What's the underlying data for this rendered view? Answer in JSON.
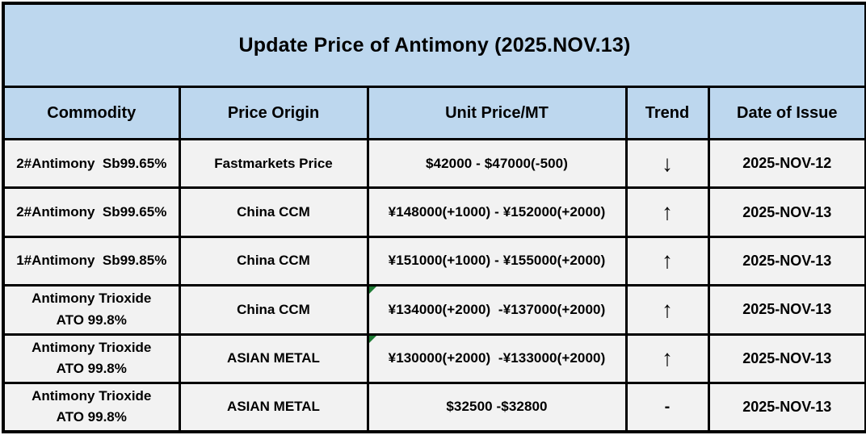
{
  "title": "Update Price of Antimony (2025.NOV.13)",
  "colors": {
    "header_background": "#BDD7EE",
    "row_background": "#F2F2F2",
    "border": "#000000",
    "text": "#000000",
    "flag_green": "#1E7B34"
  },
  "table": {
    "columns": [
      {
        "key": "commodity",
        "label": "Commodity"
      },
      {
        "key": "origin",
        "label": "Price Origin"
      },
      {
        "key": "price",
        "label": "Unit Price/MT"
      },
      {
        "key": "trend",
        "label": "Trend"
      },
      {
        "key": "date",
        "label": "Date of Issue"
      }
    ],
    "rows": [
      {
        "commodity": "2#Antimony  Sb99.65%",
        "origin": "Fastmarkets Price",
        "price": "$42000 - $47000(-500)",
        "trend": "down",
        "trend_glyph": "↓",
        "date": "2025-NOV-12",
        "corner_flag": false
      },
      {
        "commodity": "2#Antimony  Sb99.65%",
        "origin": "China CCM",
        "price": "¥148000(+1000) - ¥152000(+2000)",
        "trend": "up",
        "trend_glyph": "↑",
        "date": "2025-NOV-13",
        "corner_flag": false
      },
      {
        "commodity": "1#Antimony  Sb99.85%",
        "origin": "China CCM",
        "price": "¥151000(+1000) - ¥155000(+2000)",
        "trend": "up",
        "trend_glyph": "↑",
        "date": "2025-NOV-13",
        "corner_flag": false
      },
      {
        "commodity": "Antimony Trioxide\nATO 99.8%",
        "origin": "China CCM",
        "price": "¥134000(+2000)  -¥137000(+2000)",
        "trend": "up",
        "trend_glyph": "↑",
        "date": "2025-NOV-13",
        "corner_flag": true
      },
      {
        "commodity": "Antimony Trioxide\nATO 99.8%",
        "origin": "ASIAN METAL",
        "price": "¥130000(+2000)  -¥133000(+2000)",
        "trend": "up",
        "trend_glyph": "↑",
        "date": "2025-NOV-13",
        "corner_flag": true
      },
      {
        "commodity": "Antimony Trioxide\nATO 99.8%",
        "origin": "ASIAN METAL",
        "price": "$32500 -$32800",
        "trend": "flat",
        "trend_glyph": "-",
        "date": "2025-NOV-13",
        "corner_flag": false
      }
    ]
  },
  "chart_data": {
    "type": "table",
    "title": "Update Price of Antimony (2025.NOV.13)",
    "columns": [
      "Commodity",
      "Price Origin",
      "Unit Price/MT",
      "Trend",
      "Date of Issue"
    ],
    "rows": [
      [
        "2#Antimony  Sb99.65%",
        "Fastmarkets Price",
        "$42000 - $47000(-500)",
        "down",
        "2025-NOV-12"
      ],
      [
        "2#Antimony  Sb99.65%",
        "China CCM",
        "¥148000(+1000) - ¥152000(+2000)",
        "up",
        "2025-NOV-13"
      ],
      [
        "1#Antimony  Sb99.85%",
        "China CCM",
        "¥151000(+1000) - ¥155000(+2000)",
        "up",
        "2025-NOV-13"
      ],
      [
        "Antimony Trioxide ATO 99.8%",
        "China CCM",
        "¥134000(+2000)  -¥137000(+2000)",
        "up",
        "2025-NOV-13"
      ],
      [
        "Antimony Trioxide ATO 99.8%",
        "ASIAN METAL",
        "¥130000(+2000)  -¥133000(+2000)",
        "up",
        "2025-NOV-13"
      ],
      [
        "Antimony Trioxide ATO 99.8%",
        "ASIAN METAL",
        "$32500 -$32800",
        "flat",
        "2025-NOV-13"
      ]
    ]
  }
}
